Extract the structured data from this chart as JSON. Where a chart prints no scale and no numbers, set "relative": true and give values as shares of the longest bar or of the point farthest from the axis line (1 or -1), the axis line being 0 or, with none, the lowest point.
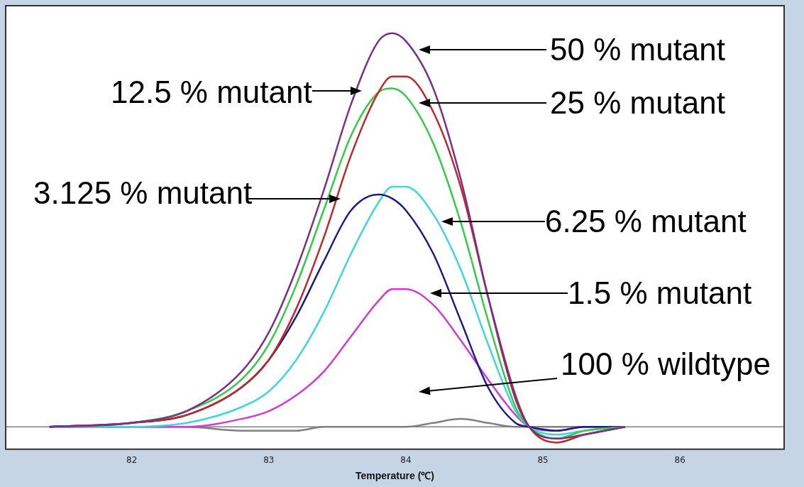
{
  "chart_data": {
    "type": "line",
    "xlabel": "Temperature (℃)",
    "relative": true,
    "xlim": [
      81.08,
      86.76
    ],
    "xticks": [
      82,
      83,
      84,
      85,
      86
    ],
    "grid": false,
    "legend": false,
    "marker": "none",
    "line_style": "solid",
    "x": [
      81.4,
      82.0,
      82.4,
      82.8,
      83.0,
      83.2,
      83.4,
      83.6,
      83.8,
      83.9,
      84.0,
      84.2,
      84.4,
      84.6,
      84.8,
      84.9,
      85.1,
      85.3,
      85.6
    ],
    "series": [
      {
        "color": "#7a2f8a",
        "values": [
          0,
          0.01,
          0.04,
          0.14,
          0.24,
          0.4,
          0.6,
          0.82,
          0.98,
          1.0,
          0.98,
          0.86,
          0.63,
          0.33,
          0.07,
          0,
          -0.03,
          -0.02,
          0
        ]
      },
      {
        "color": "#c0282a",
        "values": [
          0,
          0.01,
          0.03,
          0.1,
          0.17,
          0.3,
          0.48,
          0.69,
          0.85,
          0.89,
          0.89,
          0.8,
          0.61,
          0.33,
          0.08,
          0,
          -0.04,
          -0.02,
          0
        ]
      },
      {
        "color": "#33cc44",
        "values": [
          0,
          0.01,
          0.04,
          0.12,
          0.21,
          0.36,
          0.55,
          0.74,
          0.85,
          0.86,
          0.84,
          0.72,
          0.52,
          0.27,
          0.05,
          0,
          -0.03,
          -0.01,
          0
        ]
      },
      {
        "color": "#1c1c8c",
        "values": [
          0,
          0.01,
          0.03,
          0.1,
          0.17,
          0.28,
          0.42,
          0.55,
          0.59,
          0.58,
          0.55,
          0.44,
          0.27,
          0.1,
          0.01,
          0,
          -0.01,
          0,
          0
        ]
      },
      {
        "color": "#3fd6dc",
        "values": [
          0,
          0,
          0.01,
          0.05,
          0.09,
          0.17,
          0.29,
          0.44,
          0.57,
          0.61,
          0.61,
          0.54,
          0.4,
          0.21,
          0.04,
          0,
          -0.02,
          -0.01,
          0
        ]
      },
      {
        "color": "#d63ad6",
        "values": [
          0,
          0,
          0,
          0.02,
          0.04,
          0.08,
          0.14,
          0.23,
          0.32,
          0.35,
          0.35,
          0.31,
          0.22,
          0.12,
          0.03,
          0,
          -0.01,
          0,
          0
        ]
      },
      {
        "color": "#808080",
        "values": [
          0,
          0,
          0,
          -0.01,
          -0.01,
          -0.01,
          0,
          0,
          0,
          0,
          0,
          0.01,
          0.02,
          0.01,
          0,
          0,
          0,
          0,
          0
        ]
      }
    ],
    "annotations": [
      "50 % mutant",
      "25 % mutant",
      "12.5 % mutant",
      "3.125 % mutant",
      "6.25 % mutant",
      "1.5 % mutant",
      "100 % wildtype"
    ]
  }
}
